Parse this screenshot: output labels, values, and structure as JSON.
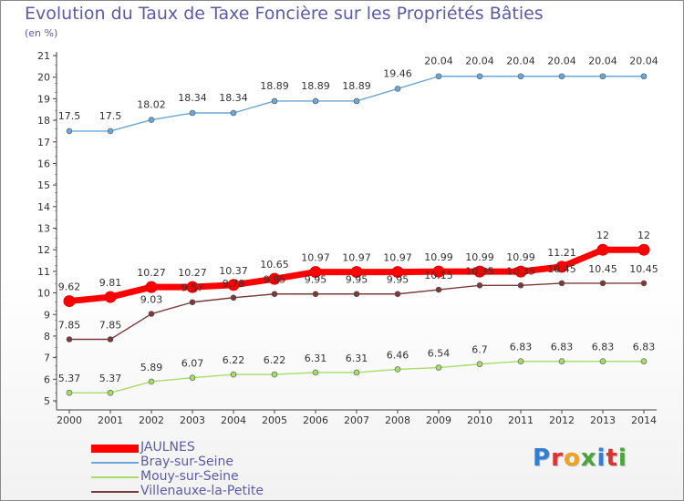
{
  "header": {
    "title": "Evolution du Taux de Taxe Foncière sur les Propriétés Bâties",
    "unit": "(en %)"
  },
  "chart_data": {
    "type": "line",
    "title": "Evolution du Taux de Taxe Foncière sur les Propriétés Bâties",
    "ylabel": "(en %)",
    "xlabel": "",
    "x": [
      "2000",
      "2001",
      "2002",
      "2003",
      "2004",
      "2005",
      "2006",
      "2007",
      "2008",
      "2009",
      "2010",
      "2011",
      "2012",
      "2013",
      "2014"
    ],
    "ylim": [
      5,
      21
    ],
    "yticks": [
      5,
      6,
      7,
      8,
      9,
      10,
      11,
      12,
      13,
      14,
      15,
      16,
      17,
      18,
      19,
      20,
      21
    ],
    "grid": false,
    "legend_position": "bottom-left",
    "series": [
      {
        "name": "JAULNES",
        "color": "#ff0000",
        "values": [
          9.62,
          9.81,
          10.27,
          10.27,
          10.37,
          10.65,
          10.97,
          10.97,
          10.97,
          10.99,
          10.99,
          10.99,
          11.21,
          12,
          12
        ],
        "labels": [
          "9.62",
          "9.81",
          "10.27",
          "10.27",
          "10.37",
          "10.65",
          "10.97",
          "10.97",
          "10.97",
          "10.99",
          "10.99",
          "10.99",
          "11.21",
          "12",
          "12"
        ]
      },
      {
        "name": "Bray-sur-Seine",
        "color": "#6aa7d6",
        "values": [
          17.5,
          17.5,
          18.02,
          18.34,
          18.34,
          18.89,
          18.89,
          18.89,
          19.46,
          20.04,
          20.04,
          20.04,
          20.04,
          20.04,
          20.04
        ],
        "labels": [
          "17.5",
          "17.5",
          "18.02",
          "18.34",
          "18.34",
          "18.89",
          "18.89",
          "18.89",
          "19.46",
          "20.04",
          "20.04",
          "20.04",
          "20.04",
          "20.04",
          "20.04"
        ]
      },
      {
        "name": "Mouy-sur-Seine",
        "color": "#a6dc6a",
        "values": [
          5.37,
          5.37,
          5.89,
          6.07,
          6.22,
          6.22,
          6.31,
          6.31,
          6.46,
          6.54,
          6.7,
          6.83,
          6.83,
          6.83,
          6.83
        ],
        "labels": [
          "5.37",
          "5.37",
          "5.89",
          "6.07",
          "6.22",
          "6.22",
          "6.31",
          "6.31",
          "6.46",
          "6.54",
          "6.7",
          "6.83",
          "6.83",
          "6.83",
          "6.83"
        ]
      },
      {
        "name": "Villenauxe-la-Petite",
        "color": "#7b3a3a",
        "values": [
          7.85,
          7.85,
          9.03,
          9.57,
          9.78,
          9.95,
          9.95,
          9.95,
          9.95,
          10.15,
          10.35,
          10.35,
          10.45,
          10.45,
          10.45
        ],
        "labels": [
          "7.85",
          "7.85",
          "9.03",
          "9.57",
          "9.78",
          "9.95",
          "9.95",
          "9.95",
          "9.95",
          "10.15",
          "10.35",
          "10.35",
          "10.45",
          "10.45",
          "10.45"
        ]
      }
    ]
  },
  "logo": {
    "letters": [
      "P",
      "r",
      "o",
      "x",
      "i",
      "t",
      "i"
    ],
    "colors": [
      "#2f7fd4",
      "#e0312f",
      "#f3a21b",
      "#4aa63c",
      "#2f7fd4",
      "#e0312f",
      "#4aa63c"
    ]
  }
}
